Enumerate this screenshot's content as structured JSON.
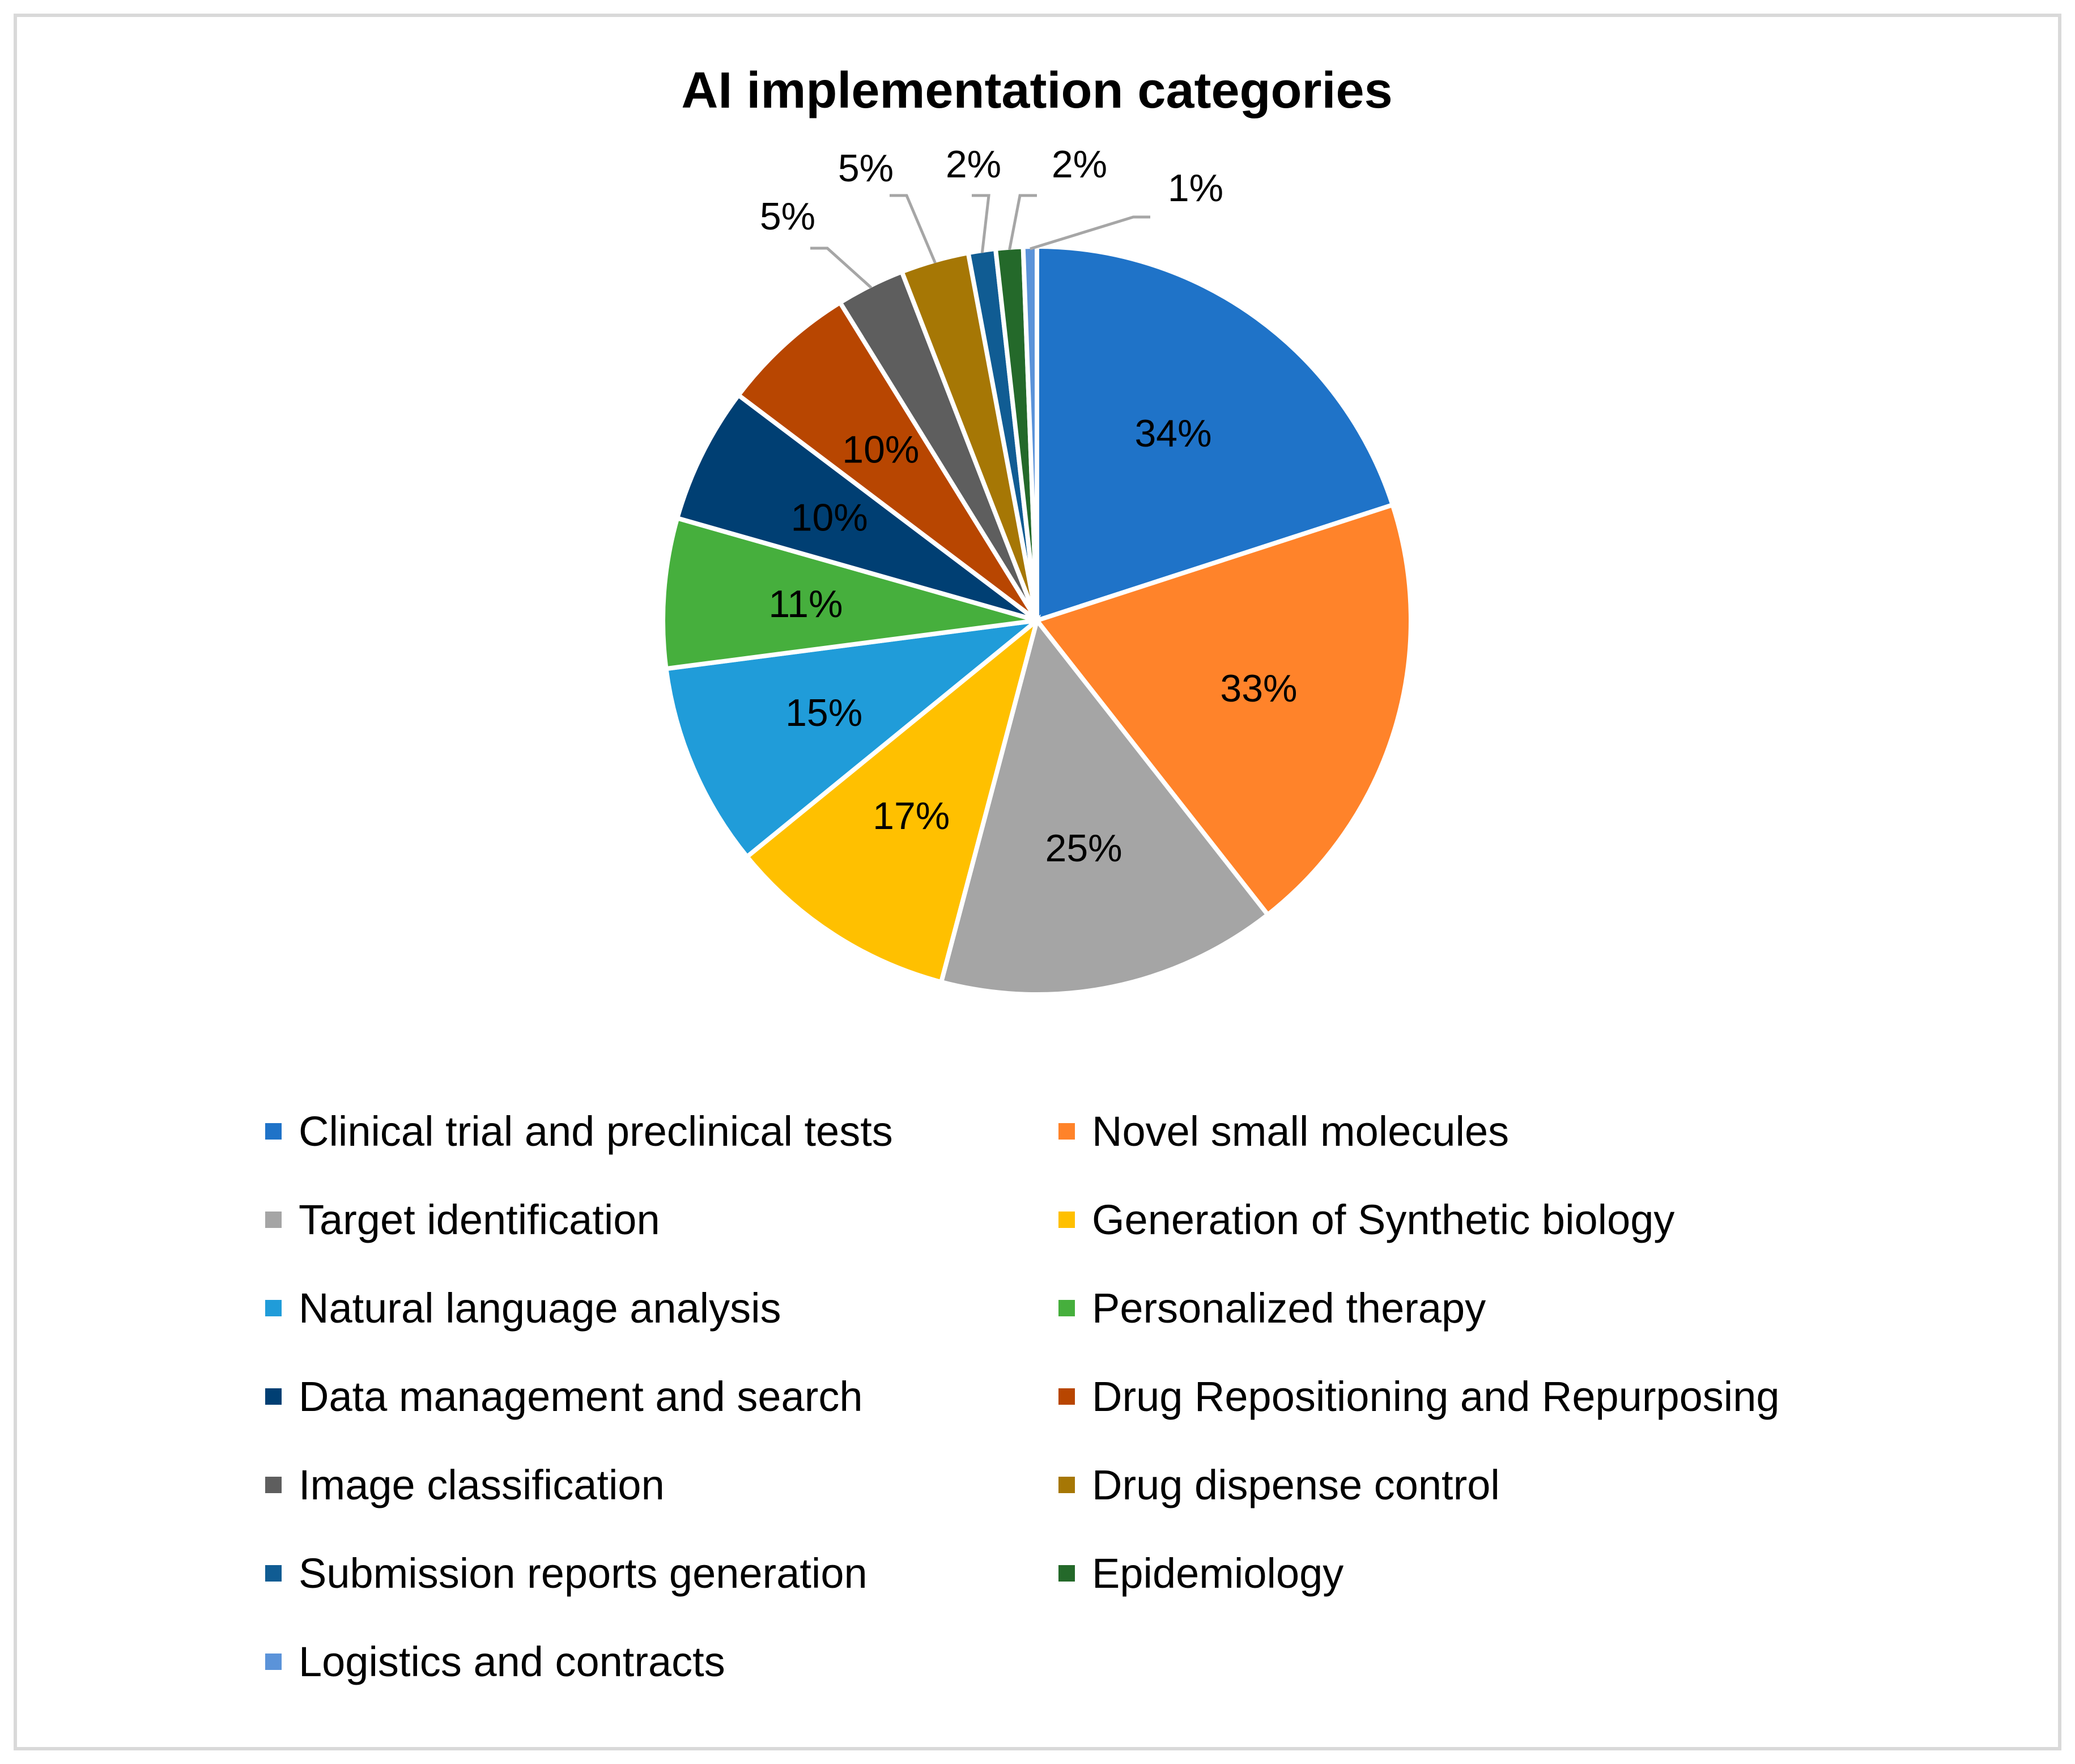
{
  "chart_data": {
    "type": "pie",
    "title": "AI implementation categories",
    "slices": [
      {
        "label": "Clinical trial and preclinical tests",
        "value": 34,
        "display": "34%",
        "color": "#1F73C8"
      },
      {
        "label": "Novel small molecules",
        "value": 33,
        "display": "33%",
        "color": "#FF832A"
      },
      {
        "label": "Target identification",
        "value": 25,
        "display": "25%",
        "color": "#A5A5A5"
      },
      {
        "label": "Generation of Synthetic biology",
        "value": 17,
        "display": "17%",
        "color": "#FFC000"
      },
      {
        "label": "Natural language analysis",
        "value": 15,
        "display": "15%",
        "color": "#209CD9"
      },
      {
        "label": "Personalized therapy",
        "value": 11,
        "display": "11%",
        "color": "#46AF3D"
      },
      {
        "label": "Data management and search",
        "value": 10,
        "display": "10%",
        "color": "#003F73"
      },
      {
        "label": "Drug Repositioning and Repurposing",
        "value": 10,
        "display": "10%",
        "color": "#B84601"
      },
      {
        "label": "Image classification",
        "value": 5,
        "display": "5%",
        "color": "#5E5E5E"
      },
      {
        "label": "Drug dispense control",
        "value": 5,
        "display": "5%",
        "color": "#A67705"
      },
      {
        "label": "Submission reports generation",
        "value": 2,
        "display": "2%",
        "color": "#105C93"
      },
      {
        "label": "Epidemiology",
        "value": 2,
        "display": "2%",
        "color": "#24692A"
      },
      {
        "label": "Logistics and contracts",
        "value": 1,
        "display": "1%",
        "color": "#5B93D9"
      }
    ],
    "legend_position": "bottom",
    "direction": "clockwise"
  }
}
